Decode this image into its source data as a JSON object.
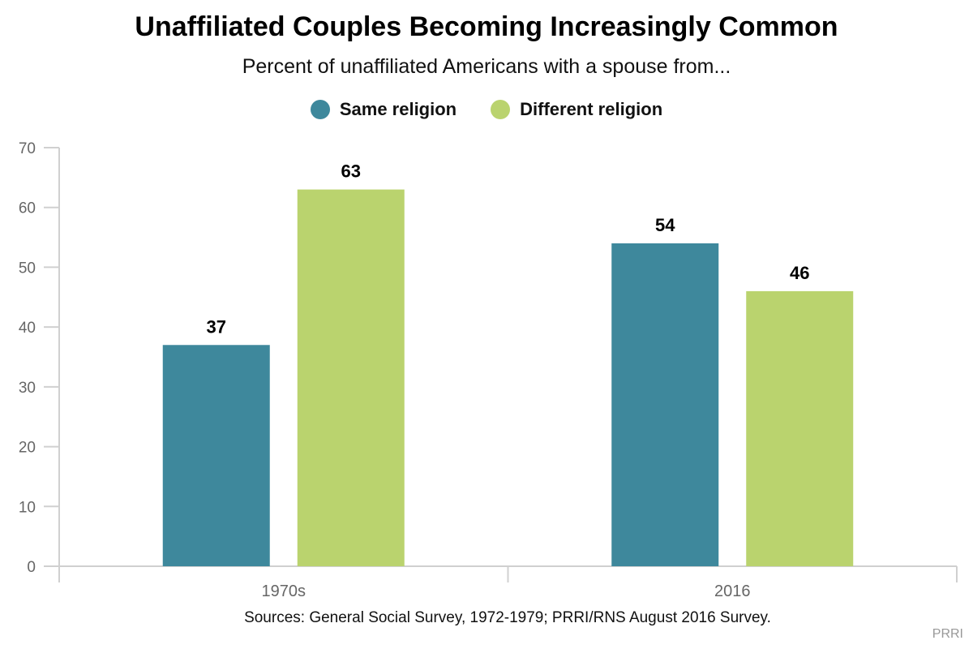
{
  "chart_data": {
    "type": "bar",
    "title": "Unaffiliated Couples Becoming Increasingly Common",
    "subtitle": "Percent of unaffiliated Americans with a spouse from...",
    "categories": [
      "1970s",
      "2016"
    ],
    "series": [
      {
        "name": "Same religion",
        "color": "#3e889c",
        "values": [
          37,
          54
        ]
      },
      {
        "name": "Different religion",
        "color": "#bad36e",
        "values": [
          63,
          46
        ]
      }
    ],
    "xlabel": "",
    "ylabel": "",
    "ylim": [
      0,
      70
    ],
    "yticks": [
      0,
      10,
      20,
      30,
      40,
      50,
      60,
      70
    ],
    "grid": false,
    "legend_position": "top-center",
    "data_labels": true
  },
  "footer": {
    "source": "Sources: General Social Survey, 1972-1979; PRRI/RNS August 2016 Survey.",
    "credit": "PRRI"
  }
}
